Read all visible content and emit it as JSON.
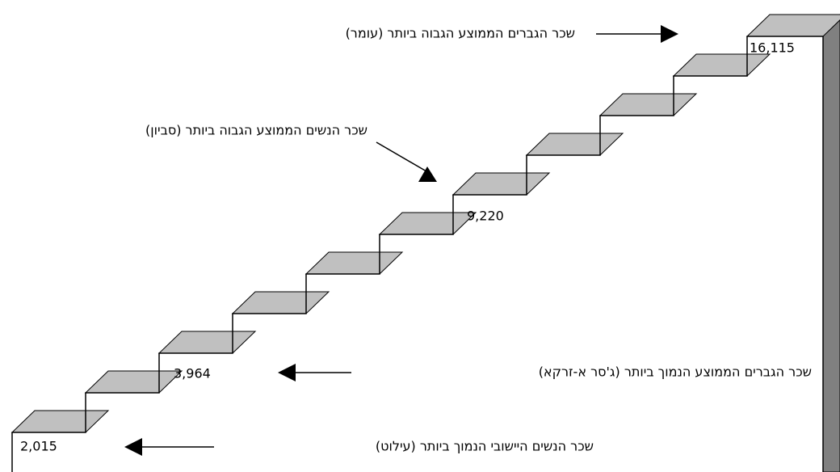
{
  "annotations": [
    "שכר הגברים הממוצע הגבוה ביותר (עומר)",
    "שכר הנשים הממוצע הגבוה ביותר (סביון)",
    "שכר הגברים הממוצע הנמוך ביותר (ג'סר א-זרקא)",
    "שכר הנשים היישובי הנמוך ביותר (עילוט)"
  ],
  "step_labels": [
    "16,115",
    "9,220",
    "3,964",
    "2,015"
  ]
}
